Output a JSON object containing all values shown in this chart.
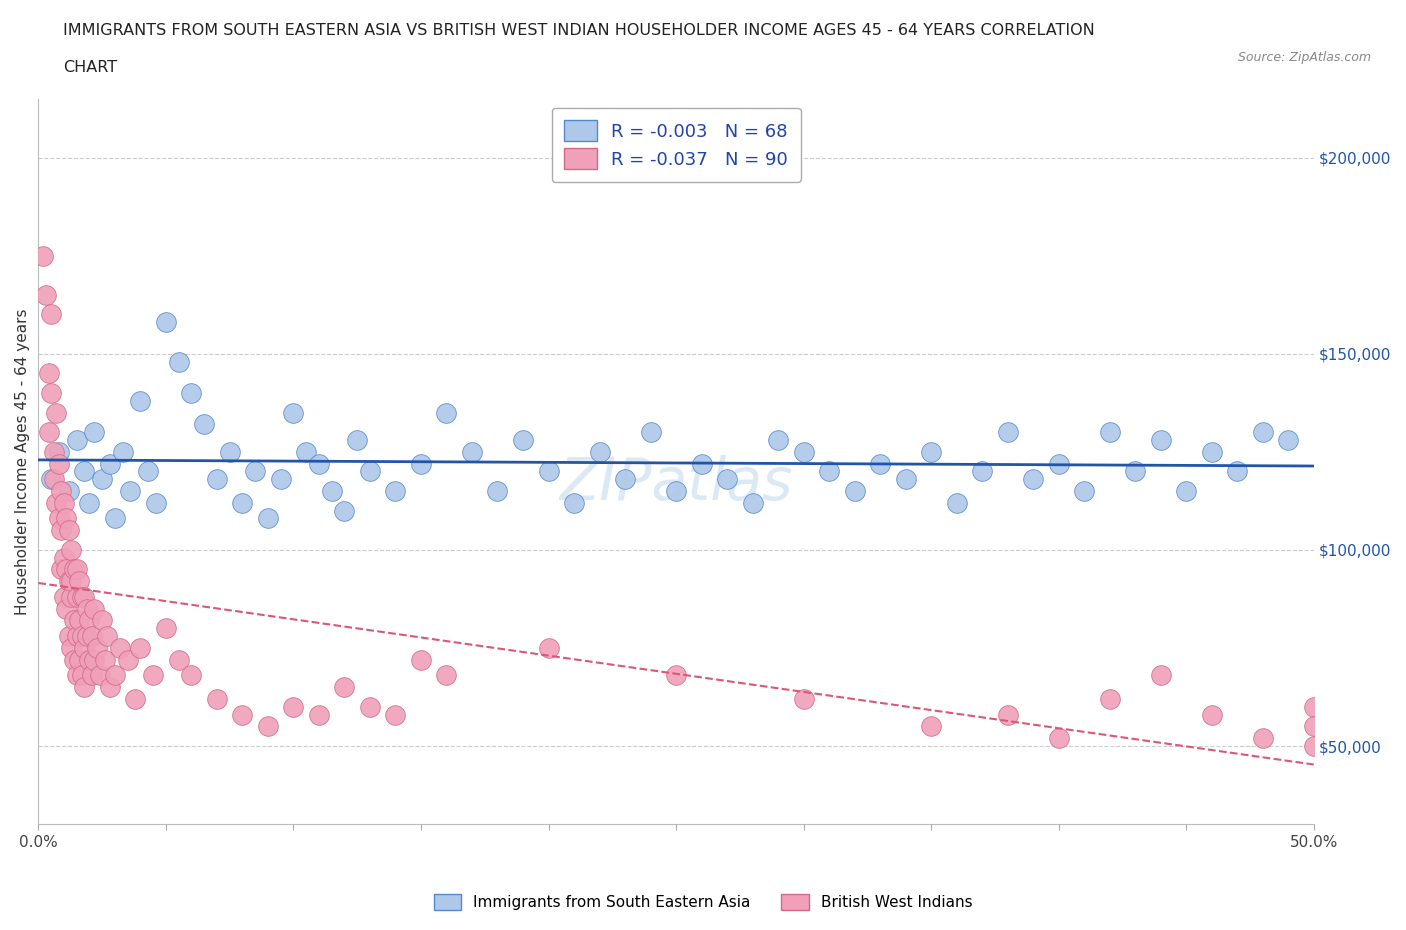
{
  "title_line1": "IMMIGRANTS FROM SOUTH EASTERN ASIA VS BRITISH WEST INDIAN HOUSEHOLDER INCOME AGES 45 - 64 YEARS CORRELATION",
  "title_line2": "CHART",
  "source_text": "Source: ZipAtlas.com",
  "ylabel": "Householder Income Ages 45 - 64 years",
  "xlim": [
    0.0,
    0.5
  ],
  "ylim": [
    30000,
    215000
  ],
  "yticks": [
    50000,
    100000,
    150000,
    200000
  ],
  "grid_color": "#cccccc",
  "background_color": "#ffffff",
  "blue_fill": "#adc8e8",
  "blue_edge": "#5588cc",
  "pink_fill": "#f0a0b8",
  "pink_edge": "#d06888",
  "blue_line_color": "#2255aa",
  "pink_line_color": "#dd5577",
  "watermark_color": "#cce0f0",
  "legend_text_color": "#2244aa",
  "sea_x": [
    0.005,
    0.008,
    0.012,
    0.015,
    0.018,
    0.02,
    0.022,
    0.025,
    0.028,
    0.03,
    0.033,
    0.036,
    0.04,
    0.043,
    0.046,
    0.05,
    0.055,
    0.06,
    0.065,
    0.07,
    0.075,
    0.08,
    0.085,
    0.09,
    0.095,
    0.1,
    0.105,
    0.11,
    0.115,
    0.12,
    0.125,
    0.13,
    0.14,
    0.15,
    0.16,
    0.17,
    0.18,
    0.19,
    0.2,
    0.21,
    0.22,
    0.23,
    0.24,
    0.25,
    0.26,
    0.27,
    0.28,
    0.29,
    0.3,
    0.31,
    0.32,
    0.33,
    0.34,
    0.35,
    0.36,
    0.37,
    0.38,
    0.39,
    0.4,
    0.41,
    0.42,
    0.43,
    0.44,
    0.45,
    0.46,
    0.47,
    0.48,
    0.49
  ],
  "sea_y": [
    118000,
    125000,
    115000,
    128000,
    120000,
    112000,
    130000,
    118000,
    122000,
    108000,
    125000,
    115000,
    138000,
    120000,
    112000,
    158000,
    148000,
    140000,
    132000,
    118000,
    125000,
    112000,
    120000,
    108000,
    118000,
    135000,
    125000,
    122000,
    115000,
    110000,
    128000,
    120000,
    115000,
    122000,
    135000,
    125000,
    115000,
    128000,
    120000,
    112000,
    125000,
    118000,
    130000,
    115000,
    122000,
    118000,
    112000,
    128000,
    125000,
    120000,
    115000,
    122000,
    118000,
    125000,
    112000,
    120000,
    130000,
    118000,
    122000,
    115000,
    130000,
    120000,
    128000,
    115000,
    125000,
    120000,
    130000,
    128000
  ],
  "bwi_x": [
    0.002,
    0.003,
    0.004,
    0.004,
    0.005,
    0.005,
    0.006,
    0.006,
    0.007,
    0.007,
    0.008,
    0.008,
    0.009,
    0.009,
    0.009,
    0.01,
    0.01,
    0.01,
    0.011,
    0.011,
    0.011,
    0.012,
    0.012,
    0.012,
    0.013,
    0.013,
    0.013,
    0.013,
    0.014,
    0.014,
    0.014,
    0.015,
    0.015,
    0.015,
    0.015,
    0.016,
    0.016,
    0.016,
    0.017,
    0.017,
    0.017,
    0.018,
    0.018,
    0.018,
    0.019,
    0.019,
    0.02,
    0.02,
    0.021,
    0.021,
    0.022,
    0.022,
    0.023,
    0.024,
    0.025,
    0.026,
    0.027,
    0.028,
    0.03,
    0.032,
    0.035,
    0.038,
    0.04,
    0.045,
    0.05,
    0.055,
    0.06,
    0.07,
    0.08,
    0.09,
    0.1,
    0.11,
    0.12,
    0.13,
    0.14,
    0.15,
    0.16,
    0.2,
    0.25,
    0.3,
    0.35,
    0.38,
    0.4,
    0.42,
    0.44,
    0.46,
    0.48,
    0.5,
    0.5,
    0.5
  ],
  "bwi_y": [
    175000,
    165000,
    145000,
    130000,
    140000,
    160000,
    125000,
    118000,
    112000,
    135000,
    108000,
    122000,
    95000,
    115000,
    105000,
    88000,
    112000,
    98000,
    95000,
    108000,
    85000,
    92000,
    105000,
    78000,
    88000,
    100000,
    75000,
    92000,
    82000,
    95000,
    72000,
    88000,
    78000,
    95000,
    68000,
    82000,
    72000,
    92000,
    78000,
    88000,
    68000,
    75000,
    88000,
    65000,
    78000,
    85000,
    72000,
    82000,
    68000,
    78000,
    72000,
    85000,
    75000,
    68000,
    82000,
    72000,
    78000,
    65000,
    68000,
    75000,
    72000,
    62000,
    75000,
    68000,
    80000,
    72000,
    68000,
    62000,
    58000,
    55000,
    60000,
    58000,
    65000,
    60000,
    58000,
    72000,
    68000,
    75000,
    68000,
    62000,
    55000,
    58000,
    52000,
    62000,
    68000,
    58000,
    52000,
    60000,
    55000,
    50000
  ]
}
